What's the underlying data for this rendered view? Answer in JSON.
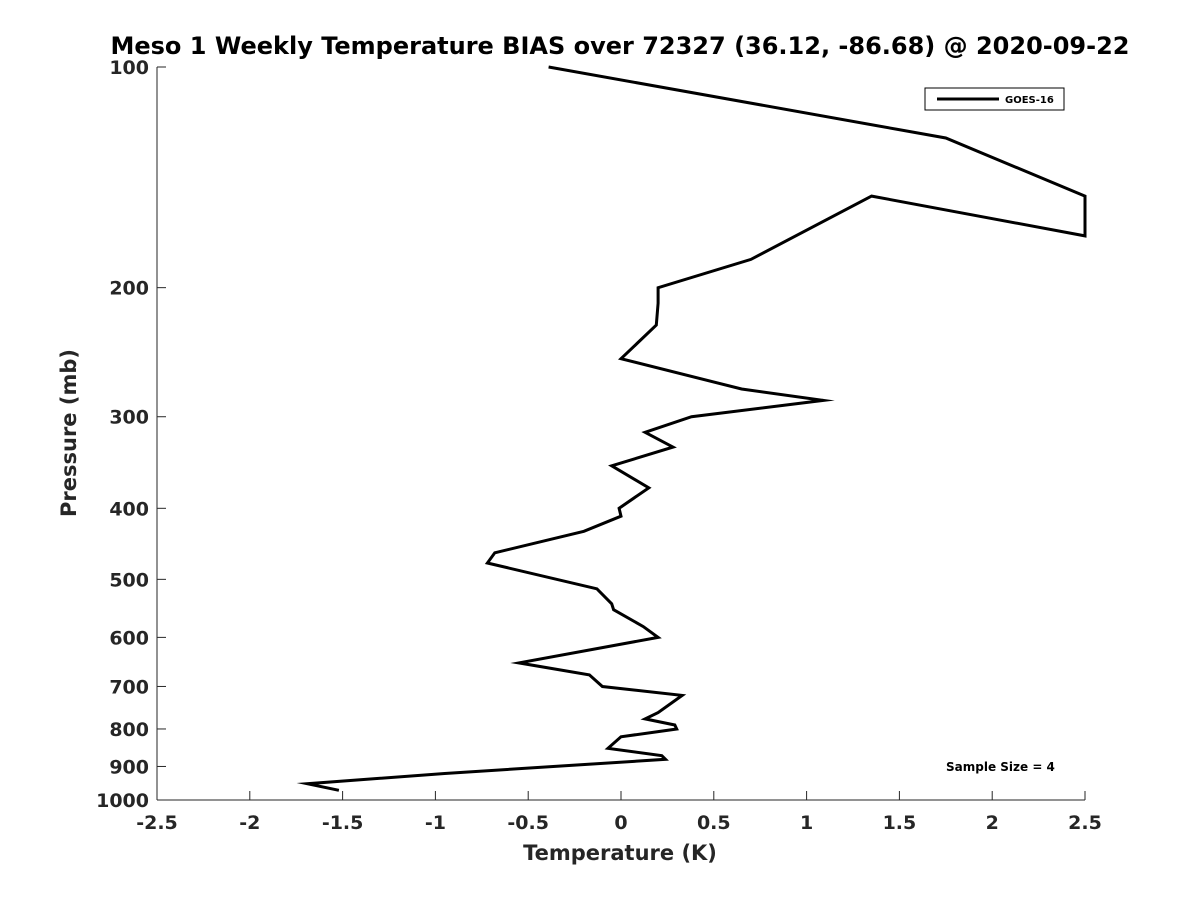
{
  "chart_data": {
    "type": "line",
    "title": "Meso 1 Weekly Temperature BIAS over 72327 (36.12, -86.68) @ 2020-09-22",
    "xlabel": "Temperature (K)",
    "ylabel": "Pressure (mb)",
    "xlim": [
      -2.5,
      2.5
    ],
    "ylim": [
      100,
      1000
    ],
    "y_scale": "log",
    "y_reversed": true,
    "grid": false,
    "legend_position": "top-right",
    "x_ticks": [
      "-2.5",
      "-2",
      "-1.5",
      "-1",
      "-0.5",
      "0",
      "0.5",
      "1",
      "1.5",
      "2",
      "2.5"
    ],
    "y_ticks": [
      "100",
      "200",
      "300",
      "400",
      "500",
      "600",
      "700",
      "800",
      "900",
      "1000"
    ],
    "annotation": "Sample Size = 4",
    "series": [
      {
        "name": "GOES-16",
        "color": "#000000",
        "x": [
          -0.39,
          1.75,
          2.5,
          2.5,
          1.35,
          0.7,
          0.2,
          0.2,
          0.19,
          0.0,
          0.65,
          1.09,
          0.38,
          0.13,
          0.28,
          -0.05,
          0.15,
          -0.01,
          0.0,
          -0.2,
          -0.68,
          -0.72,
          -0.13,
          -0.05,
          -0.04,
          0.12,
          0.2,
          -0.55,
          -0.17,
          -0.1,
          0.33,
          0.2,
          0.13,
          0.29,
          0.3,
          0.0,
          -0.07,
          0.22,
          0.24,
          -0.95,
          -1.69,
          -1.52
        ],
        "y": [
          100,
          125,
          150,
          170,
          150,
          183,
          200,
          210,
          225,
          250,
          275,
          285,
          300,
          315,
          330,
          350,
          375,
          400,
          410,
          430,
          460,
          475,
          515,
          540,
          550,
          580,
          600,
          650,
          675,
          700,
          720,
          760,
          775,
          790,
          800,
          820,
          850,
          870,
          880,
          920,
          950,
          970
        ]
      }
    ]
  }
}
